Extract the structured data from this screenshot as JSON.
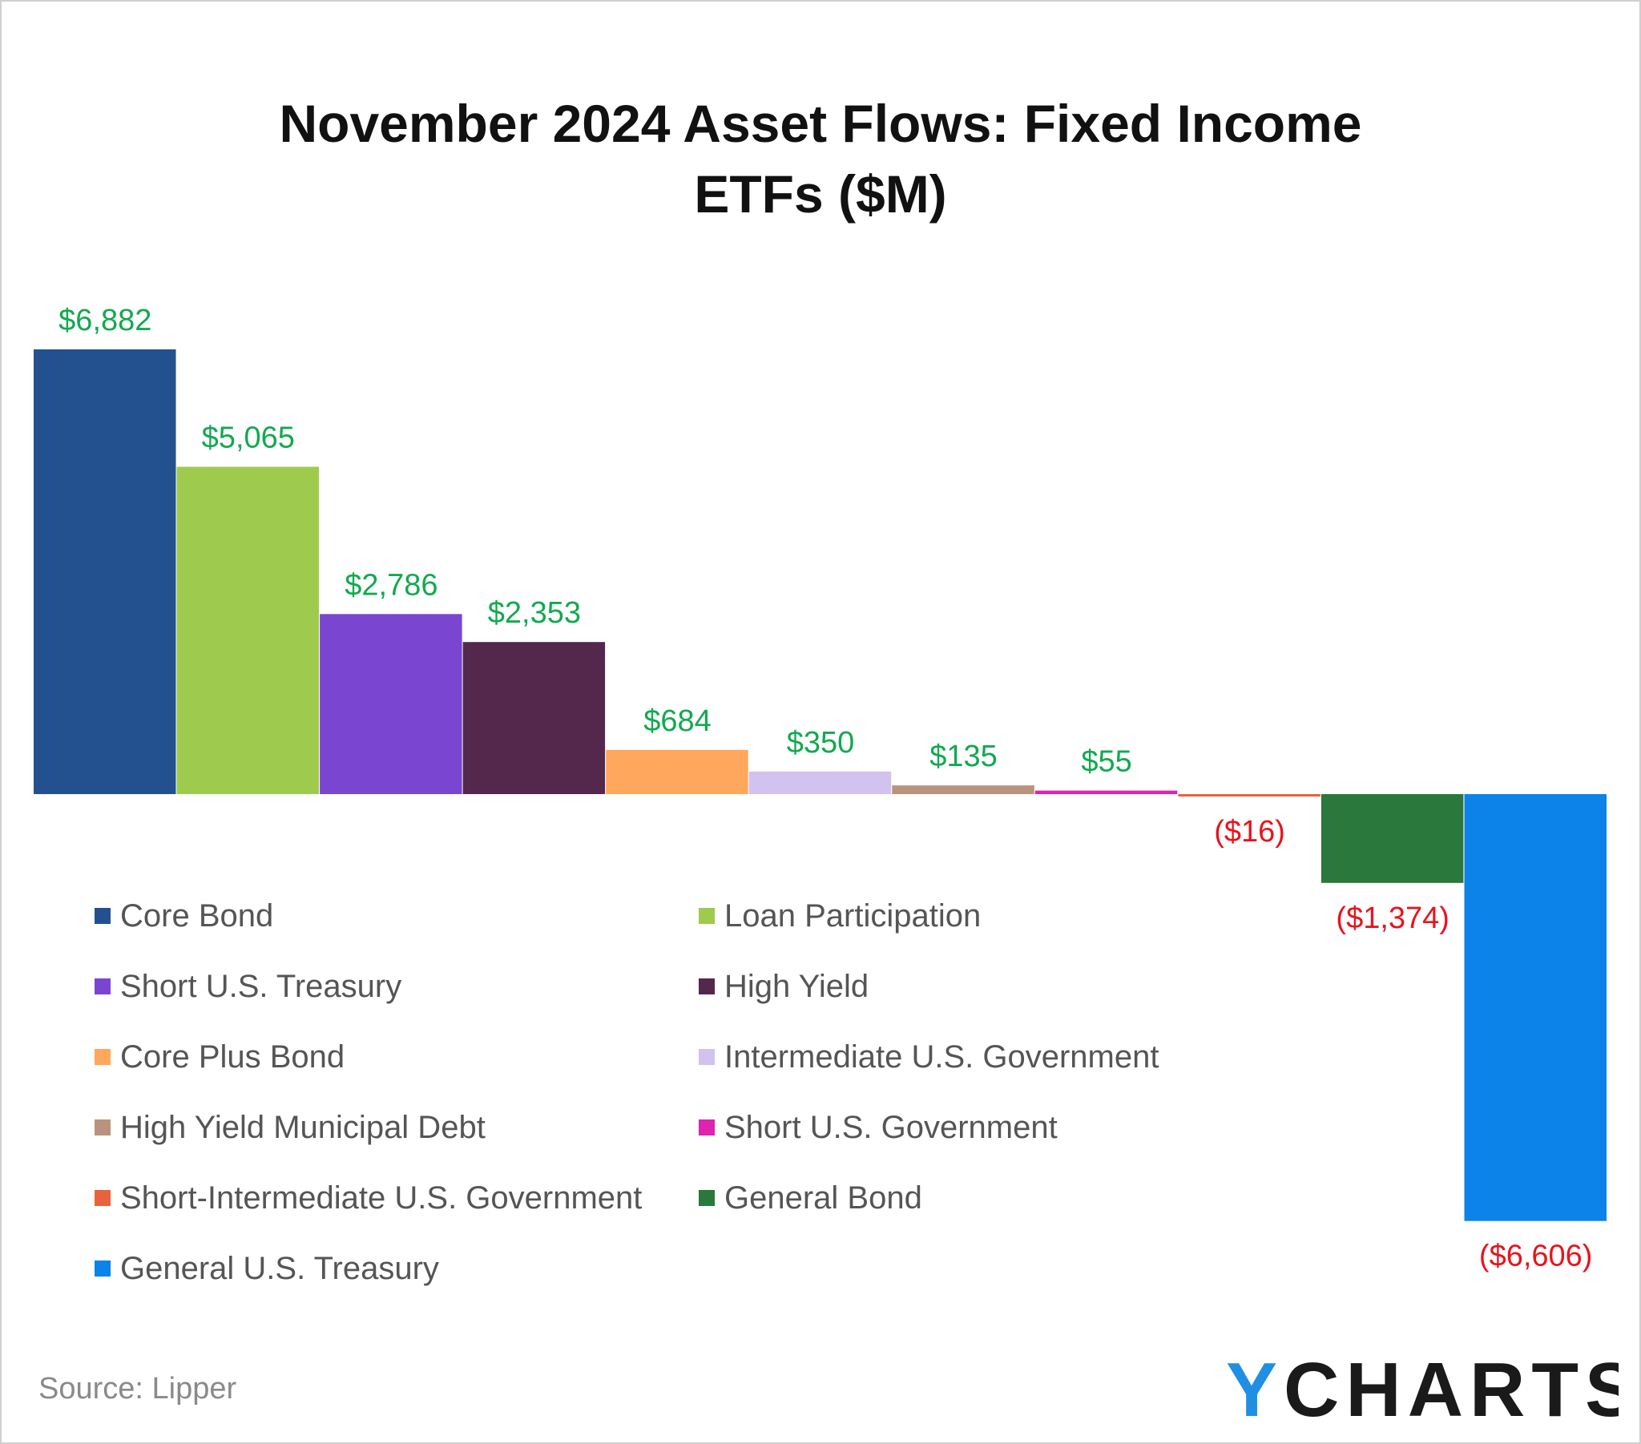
{
  "chart_data": {
    "type": "bar",
    "title_lines": [
      "November 2024 Asset Flows: Fixed Income",
      "ETFs ($M)"
    ],
    "categories": [
      "Core Bond",
      "Loan Participation",
      "Short U.S. Treasury",
      "High Yield",
      "Core Plus Bond",
      "Intermediate U.S. Government",
      "High Yield Municipal Debt",
      "Short U.S. Government",
      "Short-Intermediate U.S. Government",
      "General Bond",
      "General U.S. Treasury"
    ],
    "values": [
      6882,
      5065,
      2786,
      2353,
      684,
      350,
      135,
      55,
      -16,
      -1374,
      -6606
    ],
    "labels": [
      "$6,882",
      "$5,065",
      "$2,786",
      "$2,353",
      "$684",
      "$350",
      "$135",
      "$55",
      "($16)",
      "($1,374)",
      "($6,606)"
    ],
    "colors": [
      "#23518f",
      "#9ecb4d",
      "#7a45d0",
      "#54274d",
      "#ffa75c",
      "#d2c2ef",
      "#b9937b",
      "#de23b0",
      "#e8633d",
      "#2a783c",
      "#0b83e8"
    ],
    "positive_label_color": "#13a94f",
    "negative_label_color": "#e8141c",
    "legend_placement": "bottom-left, two columns",
    "grid": false,
    "ylim": [
      -6606,
      6882
    ]
  },
  "source_note": "Source: Lipper",
  "logo_text": "YCHARTS",
  "logo_accent_color": "#1f8fe3"
}
